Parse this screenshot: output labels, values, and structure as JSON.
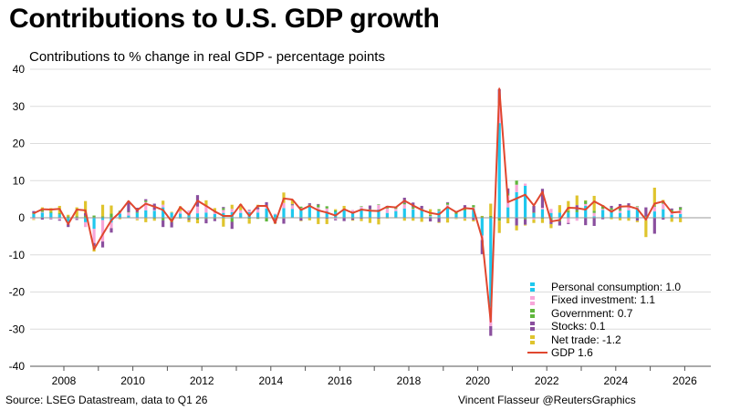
{
  "title": "Contributions to U.S. GDP growth",
  "subtitle": "Contributions to % change in real GDP - percentage points",
  "source": "Source: LSEG Datastream, data to Q1 26",
  "credit": "Vincent Flasseur @ReutersGraphics",
  "colors": {
    "consumption": "#1ec8ee",
    "investment": "#f7a6d9",
    "government": "#5fb63c",
    "stocks": "#8a4f9e",
    "net_trade": "#dfc42d",
    "gdp_line": "#e0472f"
  },
  "legend": [
    {
      "key": "consumption",
      "label": "Personal consumption: 1.0",
      "kind": "bar"
    },
    {
      "key": "investment",
      "label": "Fixed investment: 1.1",
      "kind": "bar"
    },
    {
      "key": "government",
      "label": "Government: 0.7",
      "kind": "bar"
    },
    {
      "key": "stocks",
      "label": "Stocks: 0.1",
      "kind": "bar"
    },
    {
      "key": "net_trade",
      "label": "Net trade: -1.2",
      "kind": "bar"
    },
    {
      "key": "gdp_line",
      "label": "GDP 1.6",
      "kind": "line"
    }
  ],
  "chart_data": {
    "type": "bar",
    "stacked": true,
    "combined_line": "GDP",
    "ylim": [
      -40,
      40
    ],
    "yticks": [
      -40,
      -30,
      -20,
      -10,
      0,
      10,
      20,
      30,
      40
    ],
    "xticks": [
      2008,
      2010,
      2012,
      2014,
      2016,
      2018,
      2020,
      2022,
      2024,
      2026
    ],
    "xlabel": "",
    "ylabel": "",
    "grid": true,
    "legend_position": "bottom-right",
    "x_start": "2007-Q1",
    "x_end": "2026-Q1",
    "gdp": [
      1.2,
      2.3,
      2.2,
      2.4,
      -1.7,
      2.2,
      2.0,
      -8.5,
      -4.5,
      -0.7,
      1.5,
      4.5,
      2.0,
      3.8,
      3.0,
      2.1,
      -1.0,
      2.9,
      0.8,
      4.6,
      3.2,
      1.7,
      0.5,
      0.5,
      3.6,
      0.5,
      3.2,
      3.2,
      -1.4,
      5.2,
      4.9,
      2.1,
      3.2,
      2.0,
      1.4,
      0.6,
      2.3,
      1.3,
      2.2,
      1.9,
      1.8,
      3.0,
      2.8,
      4.6,
      3.3,
      2.1,
      1.3,
      0.9,
      2.9,
      1.5,
      2.6,
      2.4,
      -5.5,
      -28.0,
      34.8,
      4.2,
      5.2,
      6.2,
      3.3,
      7.0,
      -1.0,
      -0.6,
      2.7,
      2.6,
      2.2,
      4.4,
      3.2,
      1.6,
      3.0,
      3.1,
      2.4,
      -0.5,
      3.8,
      4.4,
      1.4,
      1.6
    ],
    "series": [
      {
        "name": "Personal consumption",
        "values": [
          1.0,
          1.4,
          1.3,
          0.9,
          -1.1,
          0.1,
          -1.2,
          -3.0,
          -0.6,
          -1.3,
          1.1,
          0.6,
          1.3,
          2.0,
          1.9,
          2.8,
          1.4,
          1.1,
          1.0,
          1.2,
          1.4,
          1.0,
          1.3,
          1.5,
          1.3,
          1.5,
          1.4,
          2.5,
          0.9,
          2.6,
          2.4,
          2.1,
          3.0,
          2.2,
          1.7,
          1.6,
          2.0,
          1.6,
          2.5,
          1.8,
          2.2,
          1.3,
          1.8,
          2.5,
          2.2,
          2.0,
          0.4,
          1.8,
          2.8,
          1.0,
          2.0,
          2.4,
          -4.8,
          -24.0,
          25.5,
          2.8,
          6.9,
          8.6,
          1.3,
          2.3,
          1.3,
          1.4,
          1.4,
          1.5,
          3.2,
          0.4,
          2.1,
          1.6,
          1.3,
          2.0,
          2.6,
          0.2,
          1.7,
          2.3,
          0.8,
          1.0
        ]
      },
      {
        "name": "Fixed investment",
        "values": [
          -0.4,
          0.2,
          -0.3,
          -0.5,
          -0.6,
          -0.3,
          -1.3,
          -3.8,
          -5.8,
          -1.5,
          0.4,
          0.9,
          -0.4,
          2.2,
          0.2,
          0.7,
          -0.2,
          0.7,
          1.0,
          1.8,
          1.7,
          0.6,
          0.8,
          0.9,
          0.7,
          0.4,
          0.9,
          0.4,
          0.2,
          1.4,
          1.0,
          0.5,
          0.3,
          0.6,
          0.8,
          -0.4,
          0.1,
          0.5,
          0.5,
          0.4,
          1.3,
          1.2,
          0.6,
          1.1,
          0.2,
          0.0,
          0.1,
          0.1,
          0.7,
          -0.2,
          -0.3,
          0.4,
          -1.2,
          -5.2,
          5.3,
          3.2,
          2.0,
          0.6,
          -0.5,
          0.4,
          1.1,
          -0.7,
          -1.4,
          -0.8,
          0.5,
          0.9,
          0.3,
          0.5,
          0.6,
          0.9,
          0.3,
          -0.6,
          1.3,
          1.5,
          0.7,
          1.1
        ]
      },
      {
        "name": "Government",
        "values": [
          0.2,
          0.4,
          0.3,
          0.3,
          0.4,
          0.3,
          0.5,
          0.6,
          0.4,
          1.1,
          0.4,
          0.1,
          0.2,
          0.4,
          -0.3,
          -0.7,
          -1.0,
          -0.2,
          -0.3,
          -0.5,
          -0.3,
          -0.3,
          0.5,
          -1.1,
          -0.1,
          -0.3,
          -0.3,
          -1.0,
          -0.3,
          -0.2,
          0.1,
          0.4,
          0.2,
          0.7,
          0.6,
          0.4,
          0.3,
          -0.2,
          0.1,
          0.1,
          0.1,
          0.3,
          0.4,
          0.4,
          0.5,
          0.4,
          0.3,
          0.4,
          0.5,
          0.8,
          0.4,
          0.6,
          0.4,
          0.5,
          -0.8,
          0.5,
          1.1,
          -0.4,
          0.1,
          -0.3,
          -0.5,
          -0.3,
          0.5,
          0.6,
          0.9,
          0.6,
          0.9,
          0.5,
          0.5,
          0.4,
          0.2,
          0.2,
          0.3,
          0.6,
          0.6,
          0.7
        ]
      },
      {
        "name": "Stocks",
        "values": [
          0.6,
          -0.5,
          -0.1,
          -0.3,
          -0.8,
          -0.3,
          0.8,
          -0.8,
          -1.6,
          -1.2,
          -0.2,
          2.6,
          1.2,
          0.4,
          1.7,
          -1.8,
          -1.4,
          0.0,
          -0.3,
          3.1,
          -1.2,
          -0.6,
          0.3,
          -1.9,
          0.0,
          0.2,
          0.5,
          1.3,
          -1.2,
          -1.4,
          0.2,
          -0.8,
          0.4,
          0.2,
          -0.3,
          -0.3,
          -0.9,
          -0.4,
          -0.3,
          1.0,
          -0.3,
          0.4,
          0.1,
          1.4,
          1.2,
          0.8,
          -1.0,
          -1.2,
          0.2,
          0.0,
          1.0,
          -0.6,
          -3.8,
          -2.6,
          3.8,
          1.4,
          -2.1,
          -1.5,
          1.8,
          5.1,
          -1.2,
          -1.1,
          -0.3,
          1.3,
          -2.0,
          -2.2,
          -0.4,
          0.6,
          1.3,
          0.6,
          -0.8,
          2.4,
          -4.3,
          -0.5,
          0.4,
          0.1
        ]
      },
      {
        "name": "Net trade",
        "values": [
          -0.2,
          0.8,
          1.0,
          2.0,
          0.4,
          2.4,
          3.2,
          -1.5,
          3.1,
          2.2,
          -0.2,
          0.3,
          -0.3,
          -1.2,
          -0.5,
          1.1,
          0.2,
          1.3,
          -0.6,
          -1.0,
          1.6,
          1.0,
          -2.4,
          1.1,
          1.7,
          -1.3,
          0.7,
          0.0,
          -0.1,
          2.8,
          1.2,
          -0.1,
          -0.7,
          -1.7,
          -1.4,
          0.3,
          0.8,
          -0.2,
          -0.6,
          -1.4,
          -1.5,
          -0.2,
          -0.1,
          -0.8,
          -0.8,
          -1.1,
          1.5,
          -0.2,
          -1.3,
          -0.1,
          -0.5,
          -0.4,
          0.1,
          3.3,
          -3.3,
          -1.5,
          -1.3,
          -0.2,
          -0.9,
          -1.1,
          -1.1,
          2.0,
          2.6,
          2.6,
          0.1,
          4.0,
          0.1,
          -0.4,
          -0.7,
          -0.8,
          -0.4,
          -4.6,
          4.8,
          0.4,
          -1.1,
          -1.2
        ]
      }
    ]
  }
}
